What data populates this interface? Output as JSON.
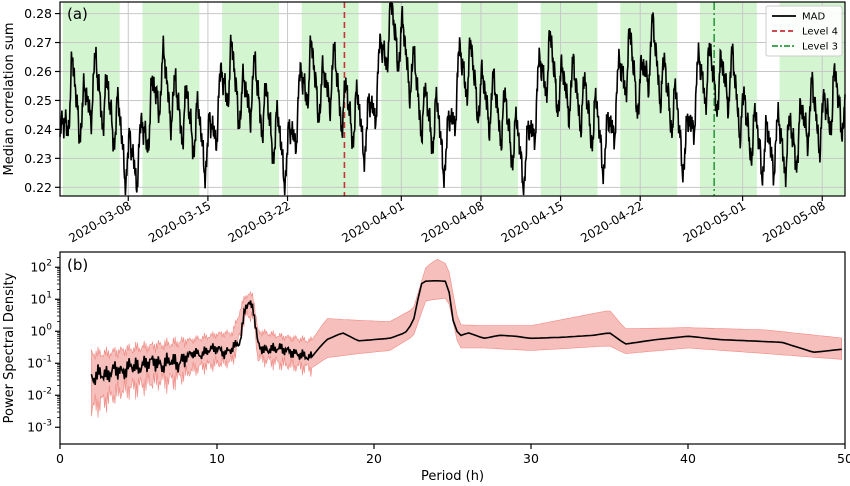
{
  "chart_data": [
    {
      "panel_label": "(a)",
      "type": "line",
      "ylabel": "Median correlation sum",
      "xlabel": "",
      "x_range": [
        "2020-03-02",
        "2020-05-10"
      ],
      "ylim": [
        0.217,
        0.284
      ],
      "x_tick_labels": [
        "2020-03-08",
        "2020-03-15",
        "2020-03-22",
        "2020-04-01",
        "2020-04-08",
        "2020-04-15",
        "2020-04-22",
        "2020-05-01",
        "2020-05-08"
      ],
      "x_tick_dates": [
        "2020-03-08",
        "2020-03-15",
        "2020-03-22",
        "2020-04-01",
        "2020-04-08",
        "2020-04-15",
        "2020-04-22",
        "2020-05-01",
        "2020-05-08"
      ],
      "y_ticks": [
        0.22,
        0.23,
        0.24,
        0.25,
        0.26,
        0.27,
        0.28
      ],
      "y_tick_labels": [
        "0.22",
        "0.23",
        "0.24",
        "0.25",
        "0.26",
        "0.27",
        "0.28"
      ],
      "grid": true,
      "legend_position": "top-right",
      "green_weekend_bands": [
        [
          "2020-03-02 06:00",
          "2020-03-07 06:00"
        ],
        [
          "2020-03-09 06:00",
          "2020-03-14 06:00"
        ],
        [
          "2020-03-16 06:00",
          "2020-03-21 06:00"
        ],
        [
          "2020-03-23 06:00",
          "2020-03-28 06:00"
        ],
        [
          "2020-03-30 06:00",
          "2020-04-04 06:00"
        ],
        [
          "2020-04-06 06:00",
          "2020-04-11 06:00"
        ],
        [
          "2020-04-13 06:00",
          "2020-04-18 06:00"
        ],
        [
          "2020-04-20 06:00",
          "2020-04-25 06:00"
        ],
        [
          "2020-04-27 06:00",
          "2020-05-02 06:00"
        ],
        [
          "2020-05-04 06:00",
          "2020-05-10 00:00"
        ]
      ],
      "series": [
        {
          "name": "MAD",
          "color": "#000000",
          "style": "solid",
          "x": [
            "2020-03-02 00:00",
            "2020-03-03 00:00",
            "2020-03-04 00:00",
            "2020-03-05 00:00",
            "2020-03-06 00:00",
            "2020-03-07 00:00",
            "2020-03-08 00:00",
            "2020-03-09 00:00",
            "2020-03-10 00:00",
            "2020-03-11 00:00",
            "2020-03-12 00:00",
            "2020-03-13 00:00",
            "2020-03-14 00:00",
            "2020-03-15 00:00",
            "2020-03-16 00:00",
            "2020-03-17 00:00",
            "2020-03-18 00:00",
            "2020-03-19 00:00",
            "2020-03-20 00:00",
            "2020-03-21 00:00",
            "2020-03-22 00:00",
            "2020-03-23 00:00",
            "2020-03-24 00:00",
            "2020-03-25 00:00",
            "2020-03-26 00:00",
            "2020-03-27 00:00",
            "2020-03-28 00:00",
            "2020-03-29 00:00",
            "2020-03-30 00:00",
            "2020-03-31 00:00",
            "2020-04-01 00:00",
            "2020-04-02 00:00",
            "2020-04-03 00:00",
            "2020-04-04 00:00",
            "2020-04-05 00:00",
            "2020-04-06 00:00",
            "2020-04-07 00:00",
            "2020-04-08 00:00",
            "2020-04-09 00:00",
            "2020-04-10 00:00",
            "2020-04-11 00:00",
            "2020-04-12 00:00",
            "2020-04-13 00:00",
            "2020-04-14 00:00",
            "2020-04-15 00:00",
            "2020-04-16 00:00",
            "2020-04-17 00:00",
            "2020-04-18 00:00",
            "2020-04-19 00:00",
            "2020-04-20 00:00",
            "2020-04-21 00:00",
            "2020-04-22 00:00",
            "2020-04-23 00:00",
            "2020-04-24 00:00",
            "2020-04-25 00:00",
            "2020-04-26 00:00",
            "2020-04-27 00:00",
            "2020-04-28 00:00",
            "2020-04-29 00:00",
            "2020-04-30 00:00",
            "2020-05-01 00:00",
            "2020-05-02 00:00",
            "2020-05-03 00:00",
            "2020-05-04 00:00",
            "2020-05-05 00:00",
            "2020-05-06 00:00",
            "2020-05-07 00:00",
            "2020-05-08 00:00",
            "2020-05-09 00:00",
            "2020-05-10 00:00"
          ],
          "y": [
            0.231,
            0.256,
            0.244,
            0.257,
            0.249,
            0.243,
            0.228,
            0.232,
            0.247,
            0.259,
            0.249,
            0.245,
            0.241,
            0.232,
            0.25,
            0.262,
            0.248,
            0.256,
            0.246,
            0.238,
            0.229,
            0.25,
            0.262,
            0.251,
            0.26,
            0.247,
            0.245,
            0.238,
            0.259,
            0.276,
            0.27,
            0.259,
            0.245,
            0.243,
            0.231,
            0.259,
            0.262,
            0.251,
            0.25,
            0.244,
            0.236,
            0.228,
            0.254,
            0.265,
            0.253,
            0.255,
            0.249,
            0.243,
            0.232,
            0.253,
            0.266,
            0.252,
            0.27,
            0.256,
            0.247,
            0.231,
            0.256,
            0.26,
            0.255,
            0.259,
            0.244,
            0.238,
            0.232,
            0.236,
            0.234,
            0.238,
            0.248,
            0.241,
            0.252,
            0.247
          ]
        },
        {
          "name": "Level 4",
          "color": "#c8323c",
          "style": "dashed",
          "x": [
            "2020-03-27 00:00"
          ]
        },
        {
          "name": "Level 3",
          "color": "#2e9b3f",
          "style": "dashdot",
          "x": [
            "2020-04-28 12:00"
          ]
        }
      ]
    },
    {
      "panel_label": "(b)",
      "type": "line",
      "xlabel": "Period (h)",
      "ylabel": "Power Spectral Density",
      "xlim": [
        0,
        50
      ],
      "y_scale": "log",
      "ylim": [
        0.0003,
        300
      ],
      "x_ticks": [
        0,
        10,
        20,
        30,
        40,
        50
      ],
      "x_tick_labels": [
        "0",
        "10",
        "20",
        "30",
        "40",
        "50"
      ],
      "y_ticks": [
        0.001,
        0.01,
        0.1,
        1,
        10,
        100
      ],
      "y_tick_labels": [
        {
          "base": "10",
          "exp": "-3"
        },
        {
          "base": "10",
          "exp": "-2"
        },
        {
          "base": "10",
          "exp": "-1"
        },
        {
          "base": "10",
          "exp": "0"
        },
        {
          "base": "10",
          "exp": "1"
        },
        {
          "base": "10",
          "exp": "2"
        }
      ],
      "grid": false,
      "series": [
        {
          "name": "",
          "color": "#000000",
          "style": "solid",
          "x": [
            2.0,
            2.5,
            3.0,
            3.5,
            4.0,
            4.5,
            5.0,
            5.5,
            6.0,
            6.5,
            7.0,
            7.5,
            8.0,
            8.5,
            9.0,
            9.5,
            10.0,
            10.5,
            11.0,
            11.5,
            11.8,
            12.0,
            12.3,
            12.6,
            13.0,
            14.0,
            15.0,
            16.0,
            16.5,
            17.0,
            18.0,
            19.0,
            20.0,
            21.0,
            22.0,
            22.5,
            23.0,
            23.3,
            24.0,
            24.7,
            25.0,
            25.4,
            26.0,
            27.0,
            28.0,
            29.0,
            30.0,
            32.0,
            34.0,
            35.0,
            36.0,
            38.0,
            40.0,
            42.0,
            44.0,
            46.0,
            48.0,
            50.0
          ],
          "y": [
            0.03,
            0.05,
            0.04,
            0.07,
            0.05,
            0.09,
            0.07,
            0.1,
            0.12,
            0.08,
            0.13,
            0.09,
            0.15,
            0.22,
            0.18,
            0.27,
            0.3,
            0.2,
            0.3,
            0.5,
            6.5,
            7.0,
            6.0,
            0.4,
            0.25,
            0.3,
            0.2,
            0.15,
            0.3,
            0.55,
            0.9,
            0.5,
            0.55,
            0.6,
            0.9,
            2.0,
            30.0,
            37.0,
            38.0,
            36.0,
            2.5,
            0.7,
            0.9,
            0.6,
            0.75,
            0.7,
            0.6,
            0.65,
            0.75,
            0.9,
            0.4,
            0.55,
            0.7,
            0.55,
            0.5,
            0.45,
            0.22,
            0.28
          ]
        },
        {
          "name": "",
          "color": "#f29a96",
          "style": "band",
          "x": [
            2.0,
            3.0,
            4.0,
            5.0,
            6.0,
            7.0,
            8.0,
            9.0,
            10.0,
            11.0,
            11.8,
            12.3,
            12.6,
            14.0,
            16.0,
            17.0,
            19.0,
            21.0,
            22.5,
            23.3,
            24.0,
            24.7,
            25.4,
            27.0,
            30.0,
            35.0,
            36.0,
            40.0,
            45.0,
            50.0
          ],
          "lower": [
            0.004,
            0.008,
            0.015,
            0.02,
            0.03,
            0.03,
            0.05,
            0.08,
            0.1,
            0.12,
            3.0,
            3.2,
            0.15,
            0.1,
            0.07,
            0.15,
            0.2,
            0.25,
            0.7,
            9.0,
            10.0,
            11.0,
            0.3,
            0.3,
            0.25,
            0.35,
            0.2,
            0.3,
            0.2,
            0.13
          ],
          "upper": [
            0.2,
            0.2,
            0.25,
            0.3,
            0.35,
            0.4,
            0.5,
            0.6,
            0.8,
            0.9,
            13.0,
            14.0,
            1.0,
            0.7,
            0.5,
            2.5,
            2.2,
            2.0,
            5.0,
            100.0,
            180.0,
            120.0,
            1.6,
            1.5,
            1.5,
            4.5,
            1.2,
            1.3,
            1.1,
            0.6
          ]
        }
      ]
    }
  ]
}
